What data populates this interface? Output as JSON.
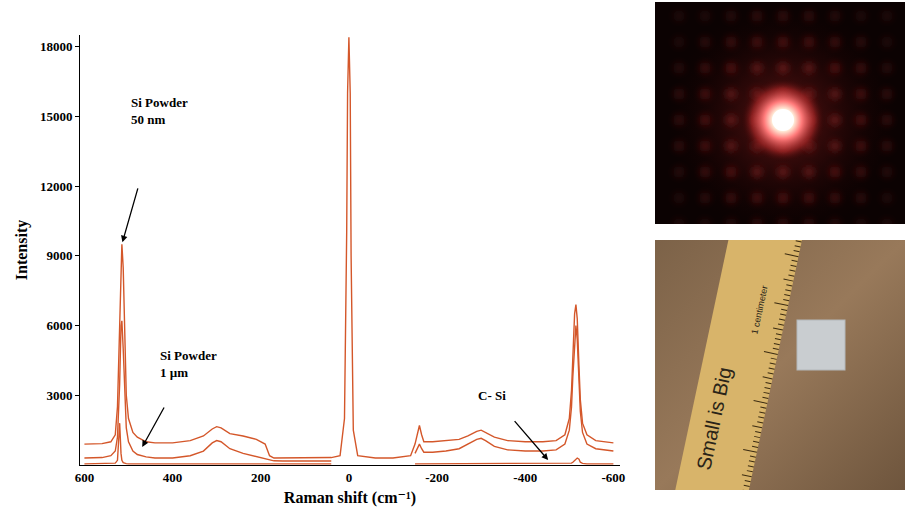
{
  "chart_data": {
    "type": "line",
    "x_label": "Raman shift (cm⁻¹)",
    "y_label": "Intensity",
    "x": [
      600,
      580,
      560,
      540,
      530,
      525,
      520,
      517,
      515,
      512,
      508,
      505,
      500,
      490,
      480,
      460,
      440,
      400,
      360,
      330,
      310,
      300,
      290,
      270,
      240,
      210,
      190,
      180,
      170,
      150,
      120,
      80,
      40,
      20,
      10,
      5,
      3,
      0,
      -3,
      -5,
      -10,
      -20,
      -60,
      -100,
      -140,
      -150,
      -155,
      -160,
      -165,
      -170,
      -190,
      -220,
      -250,
      -270,
      -290,
      -300,
      -310,
      -330,
      -360,
      -400,
      -440,
      -470,
      -490,
      -500,
      -505,
      -508,
      -512,
      -515,
      -518,
      -522,
      -525,
      -530,
      -540,
      -560,
      -580,
      -600
    ],
    "series": [
      {
        "color": "#d4572a",
        "values": [
          900,
          900,
          920,
          1000,
          1300,
          2500,
          6500,
          9000,
          9500,
          8500,
          5000,
          3000,
          2000,
          1400,
          1200,
          1000,
          950,
          950,
          1050,
          1250,
          1550,
          1650,
          1600,
          1350,
          1250,
          1100,
          900,
          400,
          300,
          300,
          300,
          300,
          320,
          400,
          2000,
          10000,
          16000,
          18400,
          16000,
          9000,
          1500,
          400,
          300,
          300,
          400,
          900,
          1300,
          1700,
          1300,
          1000,
          1000,
          1050,
          1100,
          1250,
          1450,
          1500,
          1400,
          1200,
          1050,
          1000,
          1000,
          1050,
          1300,
          2000,
          3200,
          4800,
          6500,
          6900,
          6300,
          4200,
          2800,
          1800,
          1300,
          1050,
          1000,
          950
        ]
      },
      {
        "color": "#d4572a",
        "values": [
          300,
          300,
          320,
          400,
          600,
          1200,
          3500,
          6000,
          6200,
          5000,
          2800,
          1600,
          1000,
          600,
          450,
          350,
          300,
          300,
          400,
          600,
          950,
          1050,
          1000,
          700,
          500,
          350,
          250,
          200,
          180,
          170,
          170,
          170,
          170,
          null,
          null,
          null,
          null,
          null,
          null,
          null,
          null,
          null,
          null,
          null,
          null,
          500,
          700,
          900,
          700,
          550,
          550,
          600,
          700,
          900,
          1100,
          1150,
          1050,
          800,
          650,
          600,
          600,
          650,
          900,
          1500,
          2500,
          3800,
          5300,
          6000,
          5400,
          3500,
          2300,
          1400,
          900,
          700,
          650,
          600
        ]
      },
      {
        "color": "#d4572a",
        "values": [
          50,
          50,
          50,
          60,
          80,
          200,
          1800,
          500,
          200,
          100,
          70,
          60,
          50,
          50,
          50,
          50,
          50,
          50,
          50,
          50,
          50,
          50,
          50,
          50,
          50,
          50,
          50,
          50,
          50,
          50,
          50,
          50,
          50,
          null,
          null,
          null,
          null,
          null,
          null,
          null,
          null,
          null,
          null,
          null,
          null,
          50,
          50,
          50,
          50,
          50,
          50,
          50,
          50,
          50,
          50,
          50,
          50,
          50,
          50,
          50,
          50,
          50,
          50,
          60,
          80,
          120,
          200,
          260,
          300,
          250,
          120,
          70,
          50,
          50,
          50,
          50
        ]
      }
    ],
    "annotations": [
      {
        "text": "Si Powder\n50 nm",
        "x": 515,
        "y": 9500
      },
      {
        "text": "Si Powder\n1 µm",
        "x": 471,
        "y": 700
      },
      {
        "text": "C- Si",
        "x": -455,
        "y": 150
      }
    ],
    "xlim": [
      610,
      -615
    ],
    "xticks": [
      600,
      400,
      200,
      0,
      -200,
      -400,
      -600
    ],
    "ylim": [
      0,
      18500
    ],
    "yticks": [
      3000,
      6000,
      9000,
      12000,
      15000,
      18000
    ],
    "grid": false
  },
  "photos": {
    "ruler_texts": [
      "Small is Big",
      "1 centimeter"
    ]
  }
}
